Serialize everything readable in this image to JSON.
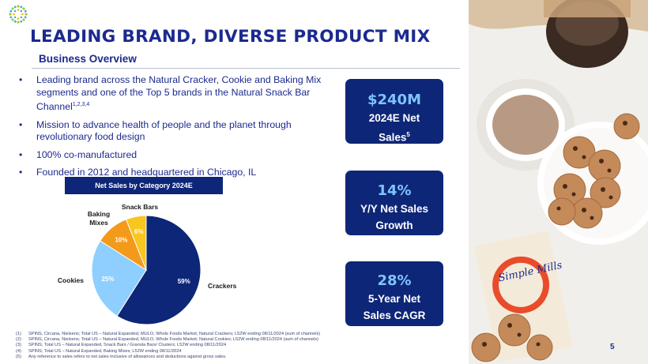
{
  "header": {
    "title": "LEADING BRAND, DIVERSE PRODUCT MIX",
    "subtitle": "Business Overview"
  },
  "bullets": [
    {
      "text": "Leading brand across the Natural Cracker, Cookie and Baking Mix segments and one of the Top 5 brands in the Natural Snack Bar Channel",
      "sup": "1,2,3,4"
    },
    {
      "text": "Mission to advance health of people and the planet through revolutionary food design",
      "sup": ""
    },
    {
      "text": "100% co-manufactured",
      "sup": ""
    },
    {
      "text": "Founded in 2012 and headquartered in Chicago, IL",
      "sup": ""
    }
  ],
  "chart_data": {
    "type": "pie",
    "title": "Net Sales by Category 2024E",
    "slices": [
      {
        "label": "Crackers",
        "value": 59,
        "value_label": "59%",
        "color": "#0e2677"
      },
      {
        "label": "Cookies",
        "value": 25,
        "value_label": "25%",
        "color": "#8fcfff"
      },
      {
        "label": "Baking Mixes",
        "value": 10,
        "value_label": "10%",
        "color": "#f39a1b"
      },
      {
        "label": "Snack Bars",
        "value": 6,
        "value_label": "6%",
        "color": "#f9c51f"
      }
    ]
  },
  "kpis": [
    {
      "value": "$240M",
      "label_line1": "2024E Net",
      "label_line2": "Sales",
      "sup": "5"
    },
    {
      "value": "14%",
      "label_line1": "Y/Y Net Sales",
      "label_line2": "Growth",
      "sup": ""
    },
    {
      "value": "28%",
      "label_line1": "5-Year Net",
      "label_line2": "Sales CAGR",
      "sup": ""
    }
  ],
  "footnotes": [
    {
      "num": "(1)",
      "text": "SPINS, Circana, Nielsens; Total US – Natural Expanded, MULO, Whole Foods Market; Natural Crackers; L52W ending 08/11/2024 (sum of channels)"
    },
    {
      "num": "(2)",
      "text": "SPINS, Circana, Nielsens; Total US – Natural Expanded, MULO, Whole Foods Market; Natural Cookies; L52W ending 08/11/2024 (sum of channels)"
    },
    {
      "num": "(3)",
      "text": "SPINS; Total US – Natural Expanded, Snack Bars / Granola Bars/ Clusters; L52W ending 08/11/2024"
    },
    {
      "num": "(4)",
      "text": "SPINS; Total US – Natural Expanded, Baking Mixes; L52W ending 08/11/2024"
    },
    {
      "num": "(5)",
      "text": "Any reference to sales refers to net sales inclusive of allowances and deductions against gross sales."
    }
  ],
  "photo": {
    "box_brand": "Simple Mills"
  },
  "page_number": "5",
  "colors": {
    "navy": "#0e2677",
    "accent_blue": "#7fc4ff",
    "title_blue": "#1b2a8f"
  }
}
